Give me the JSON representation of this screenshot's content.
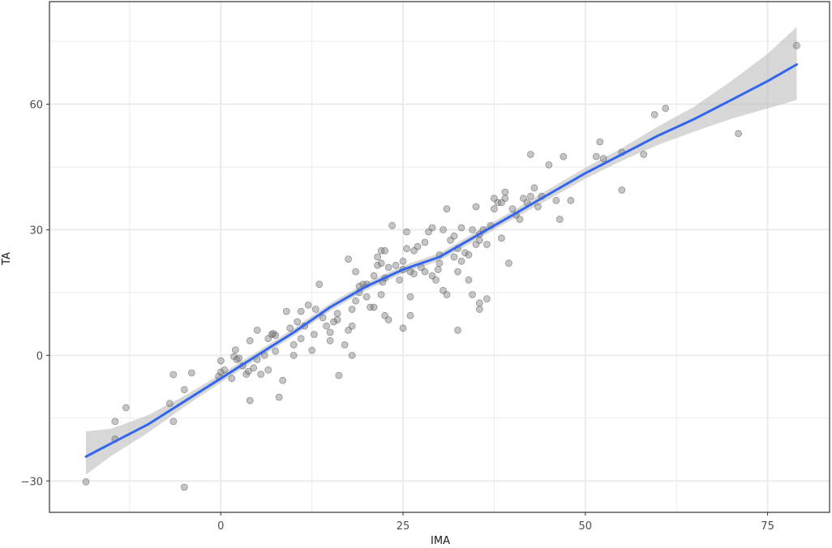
{
  "chart_data": {
    "type": "scatter",
    "title": "",
    "xlabel": "IMA",
    "ylabel": "TA",
    "xlim": [
      -23.5,
      83.5
    ],
    "ylim": [
      -37.5,
      84.5
    ],
    "x_ticks": [
      0,
      25,
      50,
      75
    ],
    "x_tick_labels": [
      "0",
      "25",
      "50",
      "75"
    ],
    "y_ticks": [
      -30,
      0,
      30,
      60
    ],
    "y_tick_labels": [
      "−30",
      "0",
      "30",
      "60"
    ],
    "grid": true,
    "legend": "none",
    "colors": {
      "points": "#7f7f7f",
      "smooth_line": "#3366ee",
      "confidence_band": "#bdbdbd",
      "grid": "#ebebeb",
      "panel_border": "#333333"
    },
    "points": [
      [
        -18.5,
        -30.2
      ],
      [
        -14.5,
        -20
      ],
      [
        -14.5,
        -15.8
      ],
      [
        -13,
        -12.5
      ],
      [
        -7,
        -11.5
      ],
      [
        -6.5,
        -4.6
      ],
      [
        -6.5,
        -15.8
      ],
      [
        -5,
        -8.2
      ],
      [
        -5,
        -31.5
      ],
      [
        -4,
        -4.2
      ],
      [
        -0.3,
        -5
      ],
      [
        0,
        -1.3
      ],
      [
        0,
        -4
      ],
      [
        0.5,
        -3.5
      ],
      [
        1.5,
        -5.5
      ],
      [
        1.8,
        -0.3
      ],
      [
        2,
        1.3
      ],
      [
        2.2,
        -1
      ],
      [
        2.5,
        -0.7
      ],
      [
        3,
        -2.5
      ],
      [
        3.5,
        -4.5
      ],
      [
        3.8,
        -3.8
      ],
      [
        4,
        -10.8
      ],
      [
        4,
        3.5
      ],
      [
        4.5,
        -3
      ],
      [
        5,
        -1
      ],
      [
        5,
        6
      ],
      [
        5.5,
        -4.5
      ],
      [
        6,
        0
      ],
      [
        6.5,
        -3.5
      ],
      [
        6.5,
        4
      ],
      [
        7,
        5
      ],
      [
        7.2,
        5.2
      ],
      [
        7.5,
        4.8
      ],
      [
        7.5,
        1
      ],
      [
        8,
        -10
      ],
      [
        8.5,
        -6
      ],
      [
        9,
        10.5
      ],
      [
        9.5,
        6.5
      ],
      [
        10,
        0
      ],
      [
        10,
        2.5
      ],
      [
        10.5,
        8
      ],
      [
        11,
        10.5
      ],
      [
        11,
        4
      ],
      [
        11.5,
        7
      ],
      [
        12,
        12
      ],
      [
        12.5,
        1.2
      ],
      [
        12.8,
        5
      ],
      [
        13,
        11
      ],
      [
        13.5,
        17
      ],
      [
        14,
        9
      ],
      [
        14.5,
        7
      ],
      [
        15,
        5.5
      ],
      [
        15,
        3.5
      ],
      [
        15.5,
        8
      ],
      [
        16,
        10
      ],
      [
        16,
        8.5
      ],
      [
        16.2,
        -4.8
      ],
      [
        17,
        2.5
      ],
      [
        17.5,
        6
      ],
      [
        18,
        0
      ],
      [
        18,
        7
      ],
      [
        18,
        11
      ],
      [
        17.5,
        23
      ],
      [
        18.5,
        20
      ],
      [
        18.5,
        13
      ],
      [
        19,
        15
      ],
      [
        19,
        16.5
      ],
      [
        19.5,
        17
      ],
      [
        20,
        17
      ],
      [
        20,
        14
      ],
      [
        20.5,
        11.5
      ],
      [
        21,
        11.5
      ],
      [
        21,
        19
      ],
      [
        21.5,
        21.5
      ],
      [
        21.5,
        23.5
      ],
      [
        22,
        22
      ],
      [
        22,
        25
      ],
      [
        22,
        14.5
      ],
      [
        22.2,
        17.5
      ],
      [
        22.5,
        18.5
      ],
      [
        22.5,
        25
      ],
      [
        22.5,
        9.5
      ],
      [
        23,
        21
      ],
      [
        23,
        8.5
      ],
      [
        23.5,
        31
      ],
      [
        24,
        21.5
      ],
      [
        24.5,
        18
      ],
      [
        25,
        22.5
      ],
      [
        25,
        20.5
      ],
      [
        25,
        6.5
      ],
      [
        25.5,
        25.5
      ],
      [
        25.5,
        29.5
      ],
      [
        26,
        20
      ],
      [
        26,
        14
      ],
      [
        26,
        9.5
      ],
      [
        26.5,
        19.5
      ],
      [
        26.5,
        25
      ],
      [
        27,
        26
      ],
      [
        27.5,
        21
      ],
      [
        28,
        20
      ],
      [
        28,
        27
      ],
      [
        28.5,
        29.5
      ],
      [
        29,
        30.5
      ],
      [
        29,
        19
      ],
      [
        29.5,
        18
      ],
      [
        29.8,
        20.5
      ],
      [
        30,
        24
      ],
      [
        30,
        22
      ],
      [
        30.5,
        30
      ],
      [
        30.5,
        15.5
      ],
      [
        31,
        35
      ],
      [
        31,
        14.5
      ],
      [
        31.5,
        27.5
      ],
      [
        32,
        28.5
      ],
      [
        32,
        23.5
      ],
      [
        32.5,
        25.5
      ],
      [
        32.5,
        20
      ],
      [
        32.5,
        6
      ],
      [
        33,
        30.5
      ],
      [
        33,
        22.5
      ],
      [
        33.5,
        24.5
      ],
      [
        34,
        24
      ],
      [
        34,
        18
      ],
      [
        34.5,
        30
      ],
      [
        34.5,
        14.5
      ],
      [
        35,
        26.5
      ],
      [
        35,
        35.5
      ],
      [
        35.5,
        29
      ],
      [
        35.5,
        27.5
      ],
      [
        35.5,
        11
      ],
      [
        35.5,
        12.5
      ],
      [
        36,
        30
      ],
      [
        36.5,
        26.5
      ],
      [
        36.5,
        13.5
      ],
      [
        37,
        31
      ],
      [
        37.5,
        35
      ],
      [
        37.5,
        37.5
      ],
      [
        38,
        36.5
      ],
      [
        38.5,
        36.5
      ],
      [
        38.5,
        28
      ],
      [
        39,
        39
      ],
      [
        39,
        37.5
      ],
      [
        39.5,
        22
      ],
      [
        40,
        35
      ],
      [
        40.5,
        33.5
      ],
      [
        41,
        32.5
      ],
      [
        41.5,
        37.5
      ],
      [
        42,
        36.5
      ],
      [
        42.5,
        38
      ],
      [
        42.5,
        48
      ],
      [
        43,
        40
      ],
      [
        43.5,
        35.5
      ],
      [
        44,
        38
      ],
      [
        45,
        45.5
      ],
      [
        46,
        37
      ],
      [
        46.5,
        32.5
      ],
      [
        47,
        47.5
      ],
      [
        48,
        37
      ],
      [
        51.5,
        47.5
      ],
      [
        52,
        51
      ],
      [
        52.5,
        47
      ],
      [
        55,
        48.5
      ],
      [
        55,
        39.5
      ],
      [
        58,
        48
      ],
      [
        59.5,
        57.5
      ],
      [
        61,
        59
      ],
      [
        71,
        53
      ],
      [
        79,
        74
      ]
    ],
    "smooth": {
      "name": "loess",
      "x": [
        -18.5,
        -15,
        -10,
        -5,
        0,
        5,
        10,
        15,
        20,
        25,
        30,
        35,
        40,
        45,
        50,
        55,
        60,
        65,
        70,
        75,
        79
      ],
      "y": [
        -24.2,
        -21,
        -16.5,
        -11,
        -5.5,
        0,
        5.5,
        11.5,
        16.5,
        20.5,
        23.5,
        28.5,
        33.5,
        38.5,
        43.5,
        48,
        52.5,
        56.5,
        61,
        65.5,
        69.5
      ],
      "lower": [
        -28.5,
        -24,
        -18.5,
        -12.3,
        -6.5,
        -0.9,
        4.6,
        10.6,
        15.6,
        19.6,
        22.6,
        27.5,
        32.5,
        37.3,
        42.2,
        46.5,
        50.3,
        53.5,
        56.5,
        59,
        61
      ],
      "upper": [
        -18.2,
        -17.5,
        -14.3,
        -9.7,
        -4.5,
        0.9,
        6.4,
        12.4,
        17.4,
        21.4,
        24.4,
        29.5,
        34.5,
        39.7,
        44.8,
        49.5,
        54.7,
        59.5,
        65.5,
        72,
        78.5
      ]
    }
  }
}
